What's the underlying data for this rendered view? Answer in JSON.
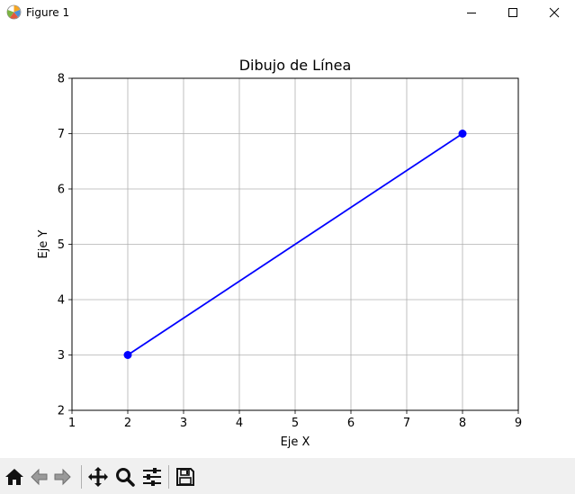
{
  "window": {
    "title": "Figure 1",
    "icons": [
      "matplotlib-logo-icon",
      "minimize-icon",
      "maximize-icon",
      "close-icon"
    ]
  },
  "toolbar": {
    "tools": [
      "home-icon",
      "back-arrow-icon",
      "forward-arrow-icon",
      "pan-move-icon",
      "zoom-magnifier-icon",
      "configure-subplots-icon",
      "save-floppy-icon"
    ]
  },
  "chart_data": {
    "type": "line",
    "title": "Dibujo de Línea",
    "xlabel": "Eje X",
    "ylabel": "Eje Y",
    "xlim": [
      1,
      9
    ],
    "ylim": [
      2,
      8
    ],
    "xticks": [
      "1",
      "2",
      "3",
      "4",
      "5",
      "6",
      "7",
      "8",
      "9"
    ],
    "yticks": [
      "2",
      "3",
      "4",
      "5",
      "6",
      "7",
      "8"
    ],
    "grid": true,
    "series": [
      {
        "x": [
          2,
          8
        ],
        "y": [
          3,
          7
        ],
        "color": "#0000ff",
        "marker": "circle"
      }
    ]
  }
}
